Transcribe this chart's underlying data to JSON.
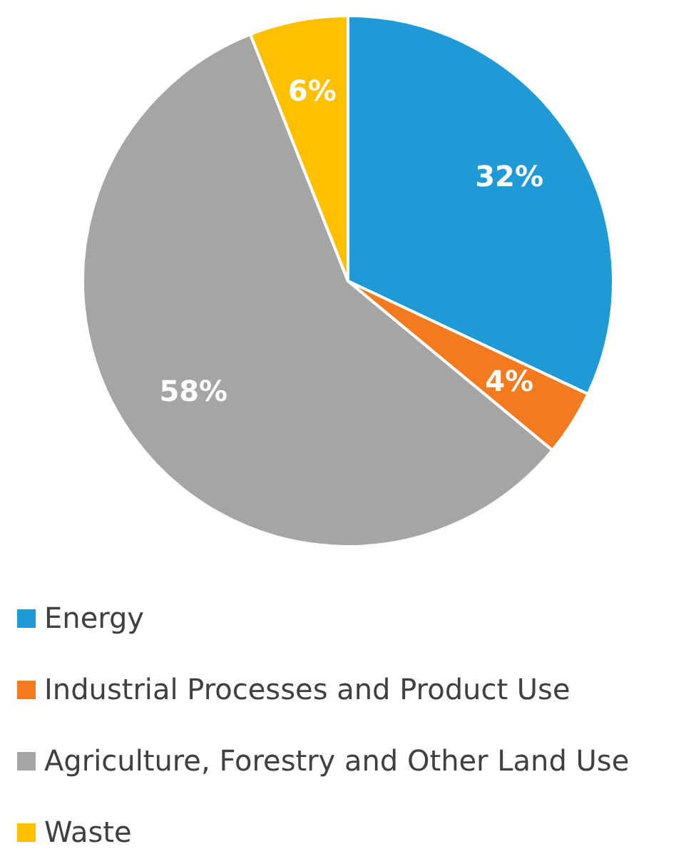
{
  "chart_data": {
    "type": "pie",
    "categories": [
      "Energy",
      "Industrial Processes and Product Use",
      "Agriculture, Forestry and Other Land Use",
      "Waste"
    ],
    "values": [
      32,
      4,
      58,
      6
    ],
    "colors": [
      "#1f9ad6",
      "#f47a20",
      "#a5a5a5",
      "#ffc000"
    ],
    "value_labels": [
      "32%",
      "4%",
      "58%",
      "6%"
    ],
    "legend": "bottom"
  }
}
